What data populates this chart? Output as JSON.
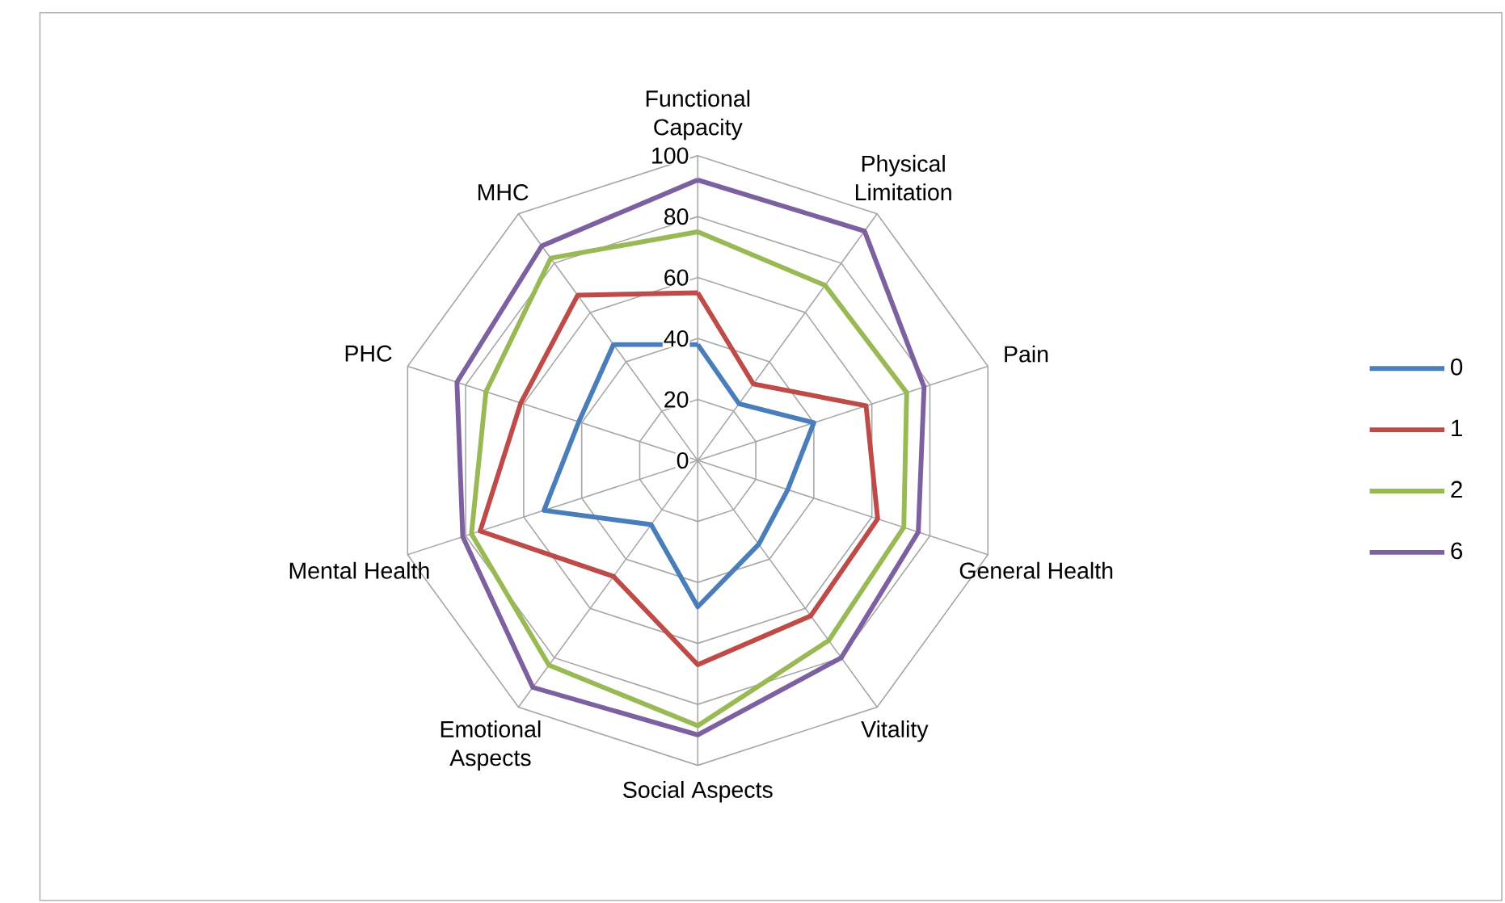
{
  "chart_data": {
    "type": "radar",
    "categories": [
      "Functional Capacity",
      "Physical Limitation",
      "Pain",
      "General Health",
      "Vitality",
      "Social Aspects",
      "Emotional Aspects",
      "Mental Health",
      "PHC",
      "MHC"
    ],
    "ylim": [
      0,
      100
    ],
    "yticks": [
      0,
      20,
      40,
      60,
      80,
      100
    ],
    "grid": true,
    "legend": "right",
    "series": [
      {
        "name": "0",
        "color": "#4a7ebb",
        "values": [
          38,
          23,
          40,
          31,
          34,
          48,
          26,
          53,
          41,
          47
        ]
      },
      {
        "name": "1",
        "color": "#be4b48",
        "values": [
          55,
          31,
          58,
          62,
          63,
          67,
          47,
          75,
          61,
          67
        ]
      },
      {
        "name": "2",
        "color": "#98b954",
        "values": [
          75,
          71,
          72,
          71,
          73,
          87,
          83,
          78,
          73,
          82
        ]
      },
      {
        "name": "6",
        "color": "#7d60a0",
        "values": [
          92,
          93,
          78,
          76,
          80,
          90,
          92,
          81,
          83,
          87
        ]
      }
    ]
  }
}
